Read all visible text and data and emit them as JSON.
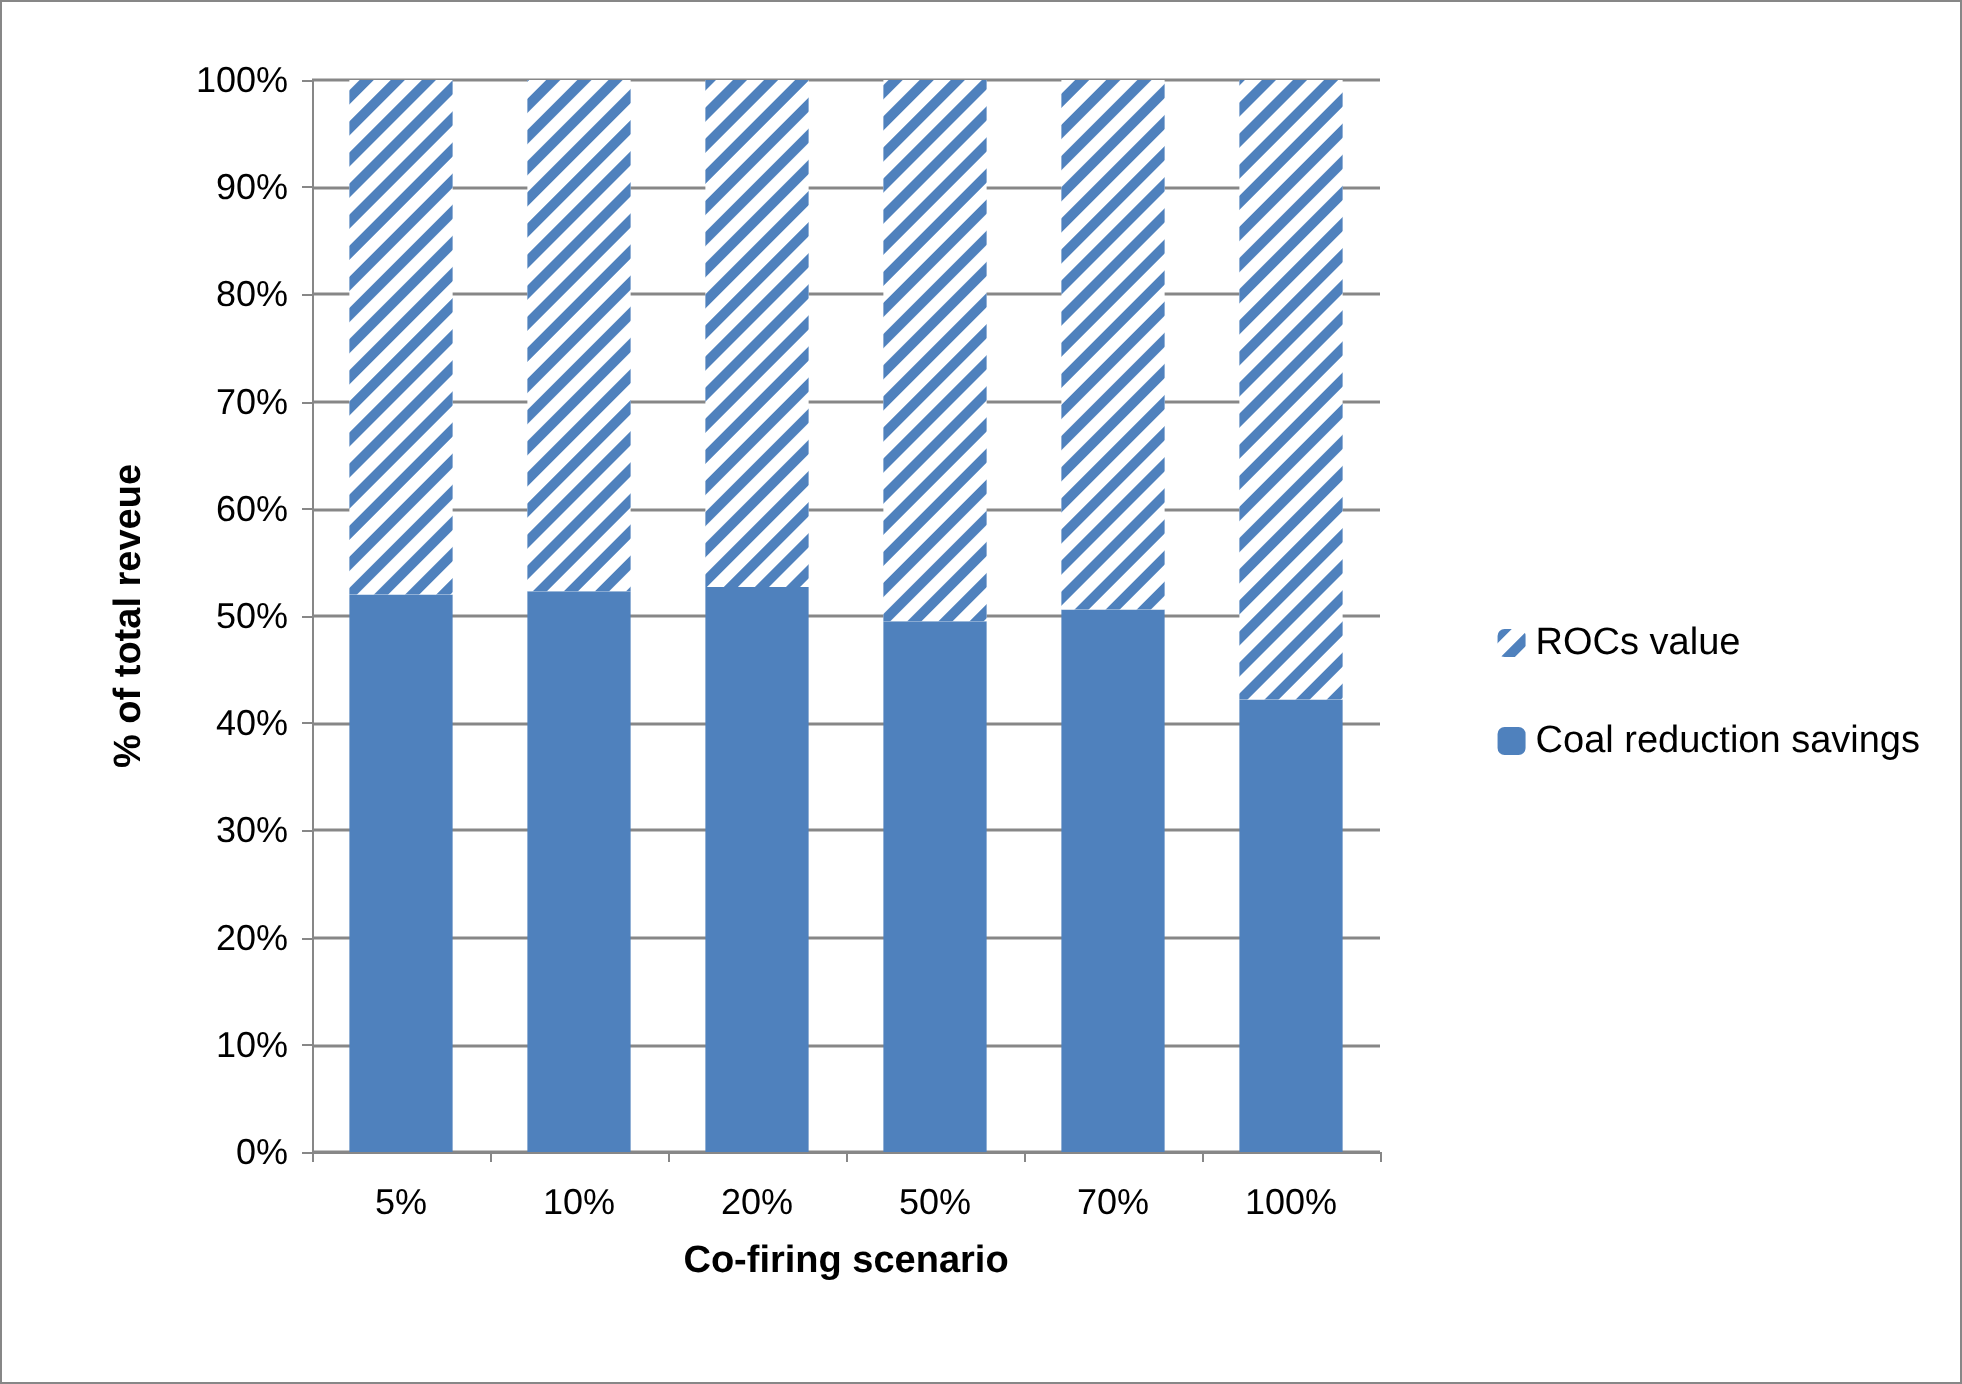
{
  "chart_data": {
    "type": "bar",
    "stacked": true,
    "xlabel": "Co-firing scenario",
    "ylabel": "% of total reveue",
    "categories": [
      "5%",
      "10%",
      "20%",
      "50%",
      "70%",
      "100%"
    ],
    "series": [
      {
        "name": "Coal reduction savings",
        "color": "#4f81bd",
        "values": [
          52.0,
          52.3,
          52.7,
          49.5,
          50.6,
          42.2
        ]
      },
      {
        "name": "ROCs value",
        "color": "#4f81bd",
        "values": [
          48.0,
          47.7,
          47.3,
          50.5,
          49.4,
          57.8
        ]
      }
    ],
    "ylim": [
      0,
      100
    ],
    "yticks": [
      {
        "value": 0,
        "label": "0%"
      },
      {
        "value": 10,
        "label": "10%"
      },
      {
        "value": 20,
        "label": "20%"
      },
      {
        "value": 30,
        "label": "30%"
      },
      {
        "value": 40,
        "label": "40%"
      },
      {
        "value": 50,
        "label": "50%"
      },
      {
        "value": 60,
        "label": "60%"
      },
      {
        "value": 70,
        "label": "70%"
      },
      {
        "value": 80,
        "label": "80%"
      },
      {
        "value": 90,
        "label": "90%"
      },
      {
        "value": 100,
        "label": "100%"
      }
    ],
    "grid": "y",
    "legend": "right"
  }
}
